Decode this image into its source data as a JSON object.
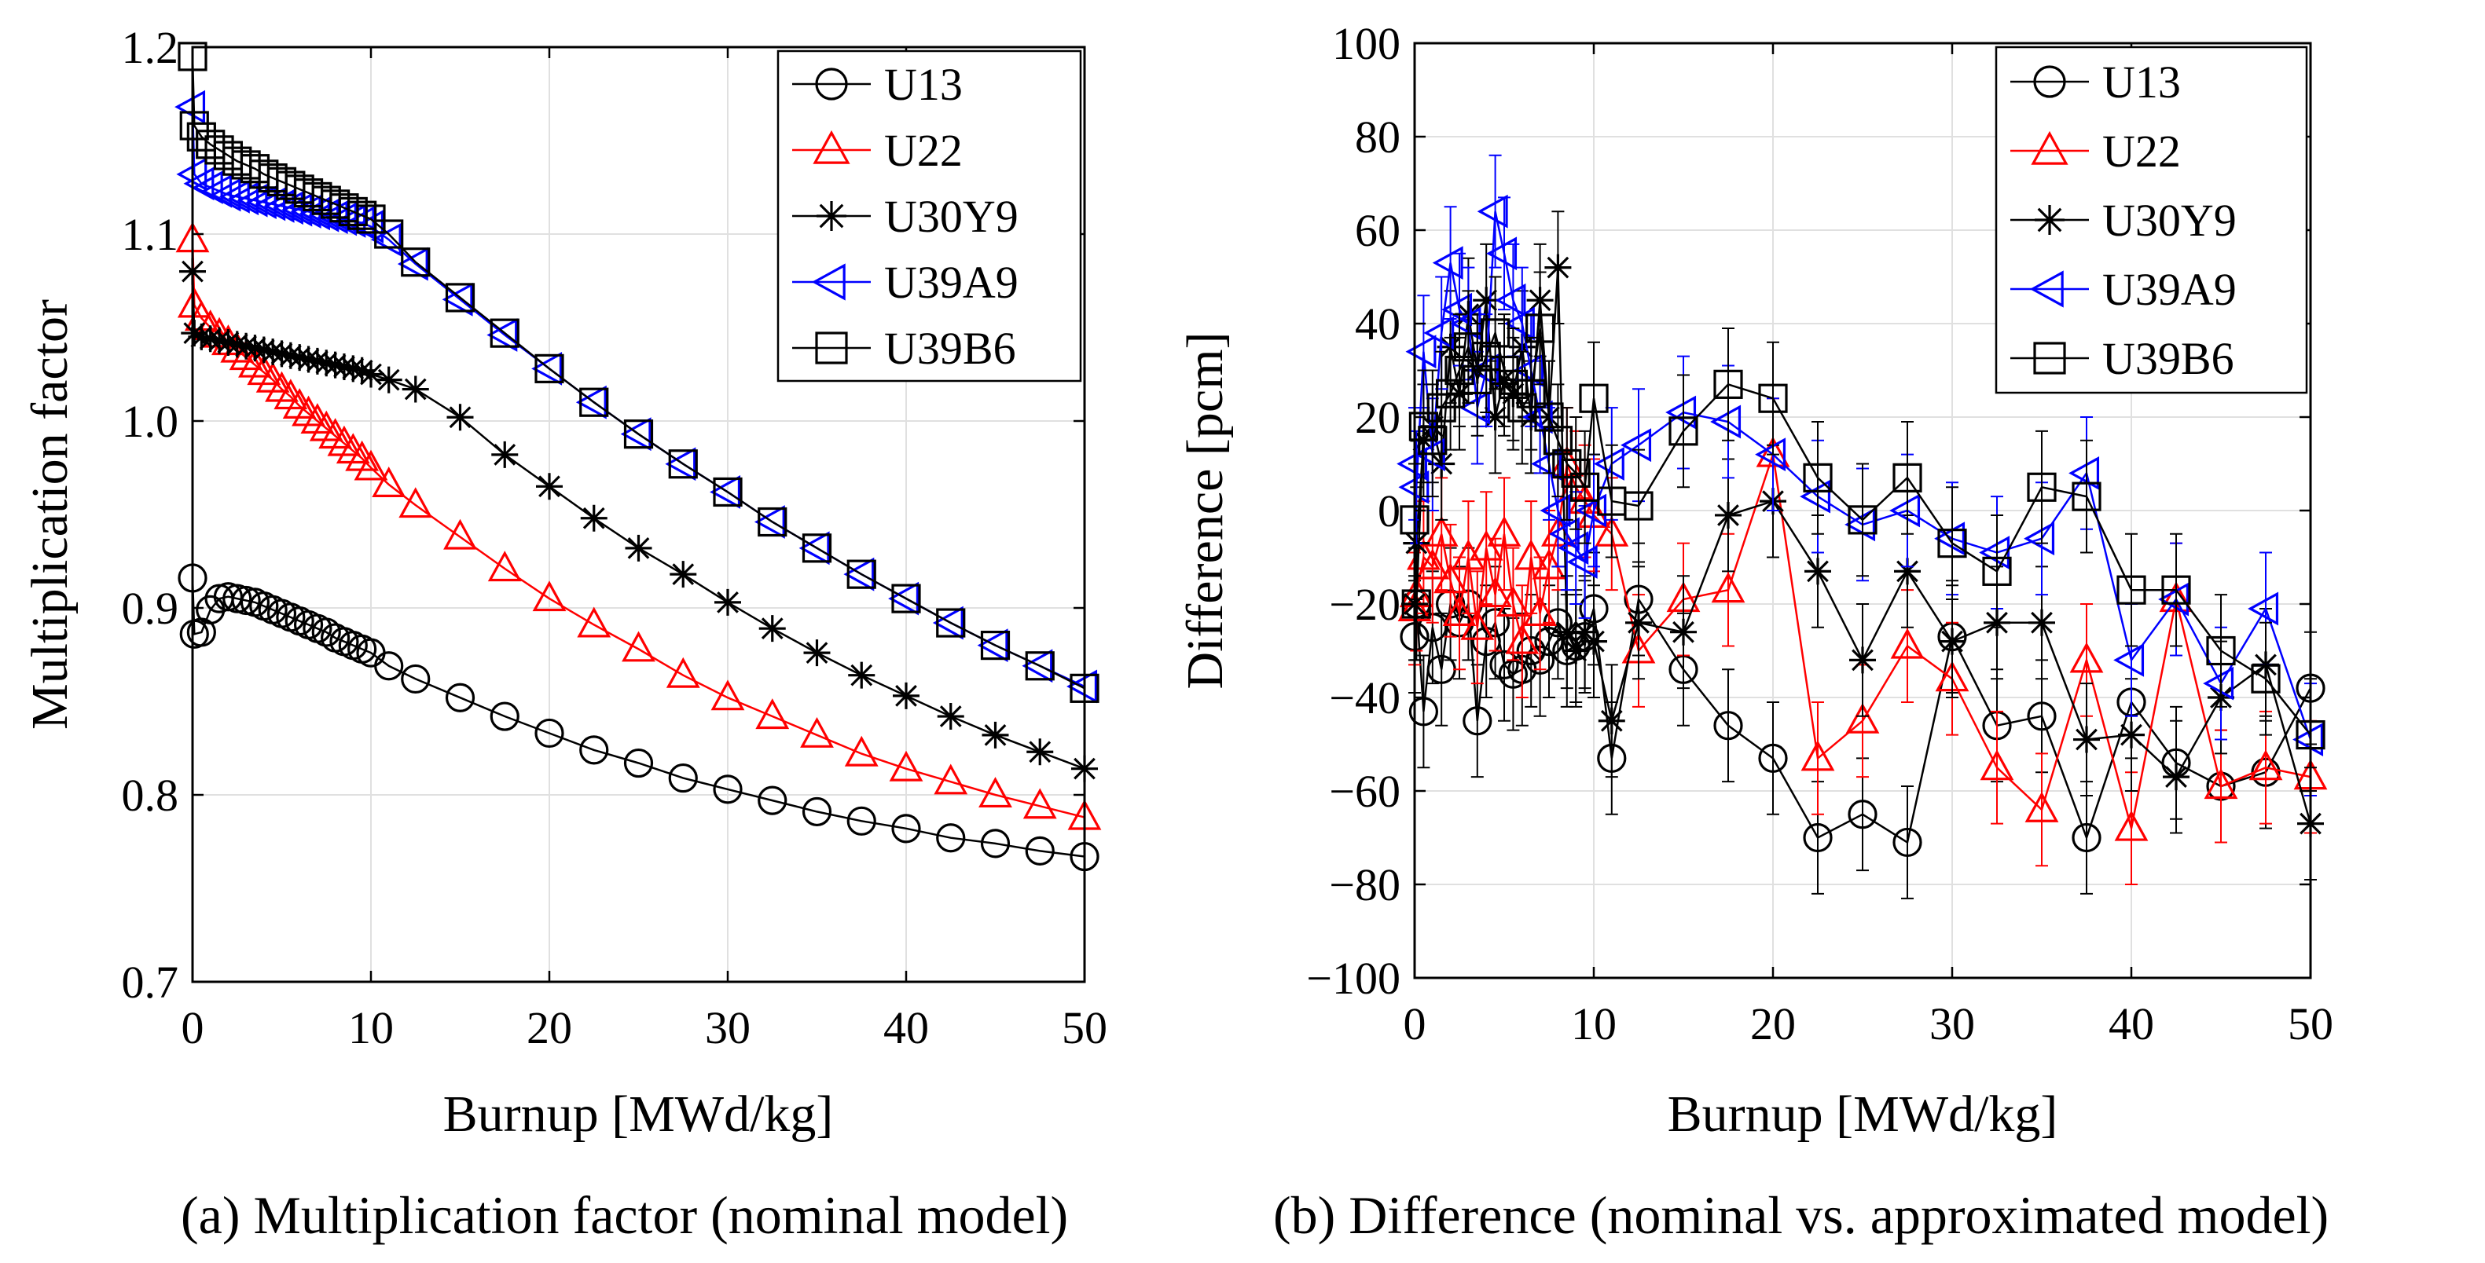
{
  "captions": {
    "a": "(a) Multiplication factor (nominal model)",
    "b": "(b) Difference (nominal vs. approximated model)"
  },
  "chart_data": [
    {
      "type": "line",
      "id": "a",
      "title": "",
      "xlabel": "Burnup [MWd/kg]",
      "ylabel": "Multiplication factor",
      "xlim": [
        0,
        50
      ],
      "ylim": [
        0.7,
        1.2
      ],
      "xticks": [
        0,
        10,
        20,
        30,
        40,
        50
      ],
      "xtick_labels": [
        "0",
        "10",
        "20",
        "30",
        "40",
        "50"
      ],
      "yticks": [
        0.7,
        0.8,
        0.9,
        1.0,
        1.1,
        1.2
      ],
      "ytick_labels": [
        "0.7",
        "0.8",
        "0.9",
        "1.0",
        "1.1",
        "1.2"
      ],
      "grid": true,
      "legend_position": "top-right",
      "x": [
        0,
        0.1,
        0.5,
        1,
        1.5,
        2,
        2.5,
        3,
        3.5,
        4,
        4.5,
        5,
        5.5,
        6,
        6.5,
        7,
        7.5,
        8,
        8.5,
        9,
        9.5,
        10,
        11,
        12.5,
        15,
        17.5,
        20,
        22.5,
        25,
        27.5,
        30,
        32.5,
        35,
        37.5,
        40,
        42.5,
        45,
        47.5,
        50
      ],
      "series": [
        {
          "name": "U13",
          "color": "#000000",
          "marker": "circle",
          "values": [
            0.916,
            0.886,
            0.887,
            0.899,
            0.905,
            0.906,
            0.905,
            0.904,
            0.903,
            0.901,
            0.899,
            0.897,
            0.895,
            0.893,
            0.891,
            0.889,
            0.887,
            0.884,
            0.882,
            0.88,
            0.878,
            0.876,
            0.869,
            0.862,
            0.852,
            0.842,
            0.833,
            0.824,
            0.817,
            0.809,
            0.803,
            0.797,
            0.791,
            0.786,
            0.782,
            0.777,
            0.774,
            0.77,
            0.767
          ]
        },
        {
          "name": "U22",
          "color": "#ff0000",
          "marker": "triangle-up",
          "values": [
            1.097,
            1.062,
            1.055,
            1.05,
            1.046,
            1.042,
            1.038,
            1.034,
            1.03,
            1.026,
            1.022,
            1.017,
            1.013,
            1.008,
            1.004,
            1.0,
            0.996,
            0.992,
            0.988,
            0.984,
            0.98,
            0.975,
            0.966,
            0.955,
            0.938,
            0.921,
            0.905,
            0.891,
            0.878,
            0.864,
            0.852,
            0.842,
            0.832,
            0.822,
            0.814,
            0.807,
            0.8,
            0.794,
            0.788
          ]
        },
        {
          "name": "U30Y9",
          "color": "#000000",
          "marker": "asterisk",
          "values": [
            1.08,
            1.047,
            1.045,
            1.044,
            1.043,
            1.042,
            1.041,
            1.04,
            1.039,
            1.038,
            1.037,
            1.036,
            1.035,
            1.034,
            1.033,
            1.032,
            1.031,
            1.03,
            1.029,
            1.028,
            1.027,
            1.025,
            1.022,
            1.017,
            1.002,
            0.982,
            0.965,
            0.948,
            0.932,
            0.918,
            0.903,
            0.889,
            0.876,
            0.864,
            0.853,
            0.842,
            0.832,
            0.823,
            0.814
          ]
        },
        {
          "name": "U39A9",
          "color": "#0000ff",
          "marker": "triangle-left",
          "values": [
            1.168,
            1.132,
            1.127,
            1.125,
            1.123,
            1.121,
            1.12,
            1.119,
            1.118,
            1.117,
            1.116,
            1.115,
            1.114,
            1.113,
            1.112,
            1.111,
            1.11,
            1.109,
            1.108,
            1.107,
            1.106,
            1.104,
            1.097,
            1.084,
            1.065,
            1.046,
            1.028,
            1.01,
            0.993,
            0.977,
            0.962,
            0.946,
            0.932,
            0.918,
            0.905,
            0.892,
            0.88,
            0.869,
            0.858
          ]
        },
        {
          "name": "U39B6",
          "color": "#000000",
          "marker": "square",
          "values": [
            1.195,
            1.158,
            1.152,
            1.148,
            1.145,
            1.142,
            1.139,
            1.137,
            1.135,
            1.132,
            1.13,
            1.128,
            1.126,
            1.124,
            1.122,
            1.12,
            1.118,
            1.116,
            1.114,
            1.112,
            1.11,
            1.108,
            1.1,
            1.085,
            1.066,
            1.047,
            1.028,
            1.01,
            0.993,
            0.977,
            0.962,
            0.946,
            0.932,
            0.918,
            0.905,
            0.892,
            0.88,
            0.869,
            0.857
          ]
        }
      ]
    },
    {
      "type": "line",
      "id": "b",
      "title": "",
      "xlabel": "Burnup [MWd/kg]",
      "ylabel": "Difference [pcm]",
      "xlim": [
        0,
        50
      ],
      "ylim": [
        -100,
        100
      ],
      "xticks": [
        0,
        10,
        20,
        30,
        40,
        50
      ],
      "xtick_labels": [
        "0",
        "10",
        "20",
        "30",
        "40",
        "50"
      ],
      "yticks": [
        -100,
        -80,
        -60,
        -40,
        -20,
        0,
        20,
        40,
        60,
        80,
        100
      ],
      "ytick_labels": [
        "−100",
        "−80",
        "−60",
        "−40",
        "−20",
        "0",
        "20",
        "40",
        "60",
        "80",
        "100"
      ],
      "grid": true,
      "legend_position": "top-right",
      "error_bar": 12,
      "x": [
        0,
        0.1,
        0.5,
        1,
        1.5,
        2,
        2.5,
        3,
        3.5,
        4,
        4.5,
        5,
        5.5,
        6,
        6.5,
        7,
        7.5,
        8,
        8.5,
        9,
        9.5,
        10,
        11,
        12.5,
        15,
        17.5,
        20,
        22.5,
        25,
        27.5,
        30,
        32.5,
        35,
        37.5,
        40,
        42.5,
        45,
        47.5,
        50
      ],
      "series": [
        {
          "name": "U13",
          "color": "#000000",
          "marker": "circle",
          "values": [
            -27,
            -20,
            -43,
            -25,
            -34,
            -20,
            -24,
            -20,
            -45,
            -28,
            -24,
            -33,
            -35,
            -34,
            -30,
            -32,
            -28,
            -24,
            -30,
            -29,
            -27,
            -21,
            -53,
            -19,
            -34,
            -46,
            -53,
            -70,
            -65,
            -71,
            -27,
            -46,
            -44,
            -70,
            -41,
            -54,
            -59,
            -56,
            -38
          ]
        },
        {
          "name": "U22",
          "color": "#ff0000",
          "marker": "triangle-up",
          "values": [
            -21,
            -18,
            -10,
            -12,
            -5,
            -15,
            -22,
            -10,
            -25,
            -8,
            -18,
            -5,
            -20,
            -28,
            -10,
            -22,
            -12,
            -5,
            10,
            5,
            2,
            -1,
            -5,
            -30,
            -19,
            -17,
            12,
            -53,
            -45,
            -29,
            -36,
            -55,
            -64,
            -32,
            -68,
            -19,
            -59,
            -55,
            -57
          ]
        },
        {
          "name": "U30Y9",
          "color": "#000000",
          "marker": "asterisk",
          "values": [
            -20,
            -7,
            15,
            18,
            10,
            35,
            25,
            42,
            30,
            45,
            20,
            28,
            25,
            35,
            20,
            45,
            20,
            52,
            -26,
            -30,
            -26,
            -28,
            -45,
            -24,
            -26,
            -1,
            2,
            -13,
            -32,
            -13,
            -28,
            -24,
            -24,
            -49,
            -48,
            -57,
            -40,
            -33,
            -67
          ]
        },
        {
          "name": "U39A9",
          "color": "#0000ff",
          "marker": "triangle-left",
          "values": [
            10,
            5,
            34,
            12,
            38,
            53,
            43,
            40,
            22,
            30,
            64,
            55,
            45,
            40,
            30,
            20,
            10,
            0,
            -5,
            -8,
            -11,
            0,
            10,
            14,
            21,
            19,
            12,
            3,
            -3,
            0,
            -6,
            -9,
            -6,
            8,
            -32,
            -19,
            -37,
            -21,
            -49
          ]
        },
        {
          "name": "U39B6",
          "color": "#000000",
          "marker": "square",
          "values": [
            -2,
            -20,
            18,
            15,
            22,
            25,
            30,
            35,
            28,
            33,
            38,
            30,
            27,
            22,
            25,
            39,
            20,
            15,
            10,
            8,
            5,
            24,
            2,
            1,
            17,
            27,
            24,
            7,
            -2,
            7,
            -7,
            -13,
            5,
            3,
            -17,
            -17,
            -30,
            -36,
            -48
          ]
        }
      ]
    }
  ]
}
